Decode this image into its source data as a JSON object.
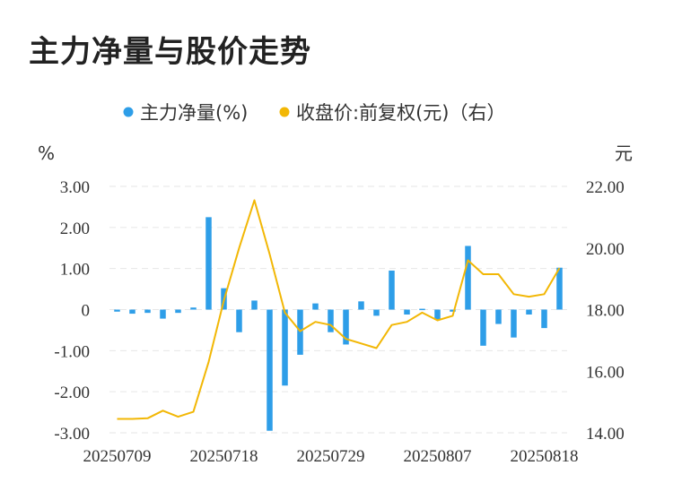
{
  "title": "主力净量与股价走势",
  "chart_data": {
    "type": "bar+line",
    "title": "主力净量与股价走势",
    "left_unit": "%",
    "right_unit": "元",
    "legend": [
      {
        "label": "主力净量(%)",
        "color": "#2e9ee8"
      },
      {
        "label": "收盘价:前复权(元)（右）",
        "color": "#f2b705"
      }
    ],
    "legend_position": "top-center",
    "grid": true,
    "y_left": {
      "range": [
        -3,
        3
      ],
      "ticks": [
        "3.00",
        "2.00",
        "1.00",
        "0",
        "-1.00",
        "-2.00",
        "-3.00"
      ]
    },
    "y_right": {
      "range": [
        14,
        22
      ],
      "ticks": [
        "22.00",
        "20.00",
        "18.00",
        "16.00",
        "14.00"
      ]
    },
    "x_tick_labels": [
      {
        "index": 0,
        "label": "20250709"
      },
      {
        "index": 7,
        "label": "20250718"
      },
      {
        "index": 14,
        "label": "20250729"
      },
      {
        "index": 21,
        "label": "20250807"
      },
      {
        "index": 28,
        "label": "20250818"
      }
    ],
    "series": [
      {
        "name": "主力净量(%)",
        "axis": "left",
        "kind": "bar",
        "color": "#2e9ee8",
        "values": [
          -0.05,
          -0.1,
          -0.08,
          -0.22,
          -0.08,
          0.05,
          2.25,
          0.52,
          -0.55,
          0.22,
          -2.95,
          -1.85,
          -1.1,
          0.15,
          -0.55,
          -0.85,
          0.2,
          -0.15,
          0.95,
          -0.12,
          0.02,
          -0.25,
          -0.05,
          1.55,
          -0.88,
          -0.35,
          -0.68,
          -0.12,
          -0.45,
          1.02
        ]
      },
      {
        "name": "收盘价:前复权(元)（右）",
        "axis": "right",
        "kind": "line",
        "color": "#f2b705",
        "values": [
          14.45,
          14.45,
          14.47,
          14.72,
          14.52,
          14.68,
          16.3,
          18.3,
          20.0,
          21.55,
          19.8,
          17.9,
          17.3,
          17.6,
          17.5,
          17.05,
          16.9,
          16.75,
          17.5,
          17.6,
          17.9,
          17.65,
          17.8,
          19.6,
          19.15,
          19.15,
          18.5,
          18.42,
          18.5,
          19.35
        ]
      }
    ]
  }
}
